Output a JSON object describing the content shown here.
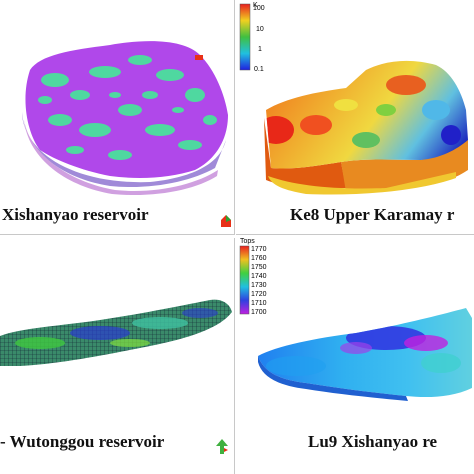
{
  "panels": {
    "top_left": {
      "caption": "Xishanyao reservoir"
    },
    "top_right": {
      "caption": "Ke8 Upper Karamay r",
      "legend": {
        "title": "K",
        "ticks": [
          "100",
          "10",
          "1",
          "0.1"
        ]
      }
    },
    "bottom_left": {
      "caption": "- Wutonggou reservoir"
    },
    "bottom_right": {
      "caption": "Lu9 Xishanyao re",
      "legend": {
        "title": "Tops",
        "ticks": [
          "1770",
          "1760",
          "1750",
          "1740",
          "1730",
          "1720",
          "1710",
          "1700"
        ]
      }
    }
  },
  "icons": [
    "axis-orientation-icon"
  ],
  "colors": {
    "background": "#ffffff",
    "purple": "#b040e8",
    "green": "#50d890",
    "red": "#e83018"
  }
}
